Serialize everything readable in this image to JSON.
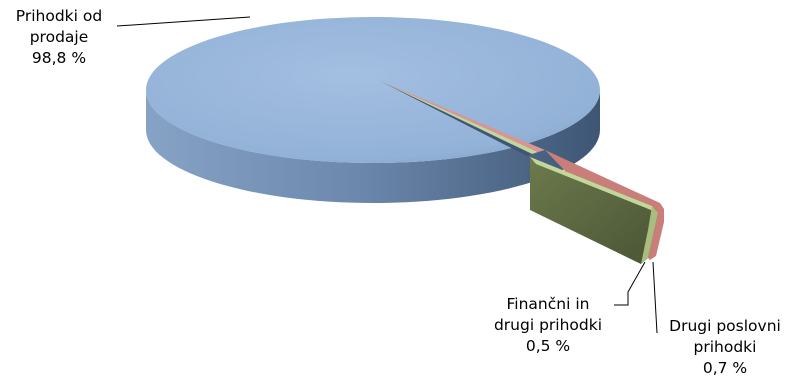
{
  "chart_data": {
    "type": "pie",
    "style": "3d-exploded",
    "slices": [
      {
        "label_lines": [
          "Prihodki od",
          "prodaje"
        ],
        "value_label": "98,8 %",
        "value": 98.8,
        "color": "#94b3d8"
      },
      {
        "label_lines": [
          "Drugi poslovni",
          "prihodki"
        ],
        "value_label": "0,7 %",
        "value": 0.7,
        "color": "#d99591"
      },
      {
        "label_lines": [
          "Finančni in",
          "drugi prihodki"
        ],
        "value_label": "0,5 %",
        "value": 0.5,
        "color": "#c3d69b"
      }
    ],
    "legend": "none",
    "data_labels": "outside-with-leader-lines"
  }
}
